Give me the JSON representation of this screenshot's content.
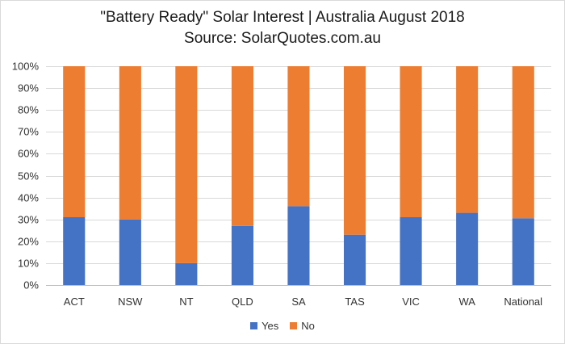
{
  "chart_data": {
    "type": "bar",
    "stacked": true,
    "title": "\"Battery Ready\" Solar Interest  |  Australia August 2018",
    "subtitle": "Source: SolarQuotes.com.au",
    "categories": [
      "ACT",
      "NSW",
      "NT",
      "QLD",
      "SA",
      "TAS",
      "VIC",
      "WA",
      "National"
    ],
    "series": [
      {
        "name": "Yes",
        "color": "#4472C4",
        "values": [
          31,
          30,
          10,
          27,
          36,
          23,
          31,
          33,
          30.5
        ]
      },
      {
        "name": "No",
        "color": "#ED7D31",
        "values": [
          69,
          70,
          90,
          73,
          64,
          77,
          69,
          67,
          69.5
        ]
      }
    ],
    "ylim": [
      0,
      100
    ],
    "yticks": [
      "0%",
      "10%",
      "20%",
      "30%",
      "40%",
      "50%",
      "60%",
      "70%",
      "80%",
      "90%",
      "100%"
    ],
    "xlabel": "",
    "ylabel": "",
    "grid": true,
    "legend_position": "bottom"
  }
}
